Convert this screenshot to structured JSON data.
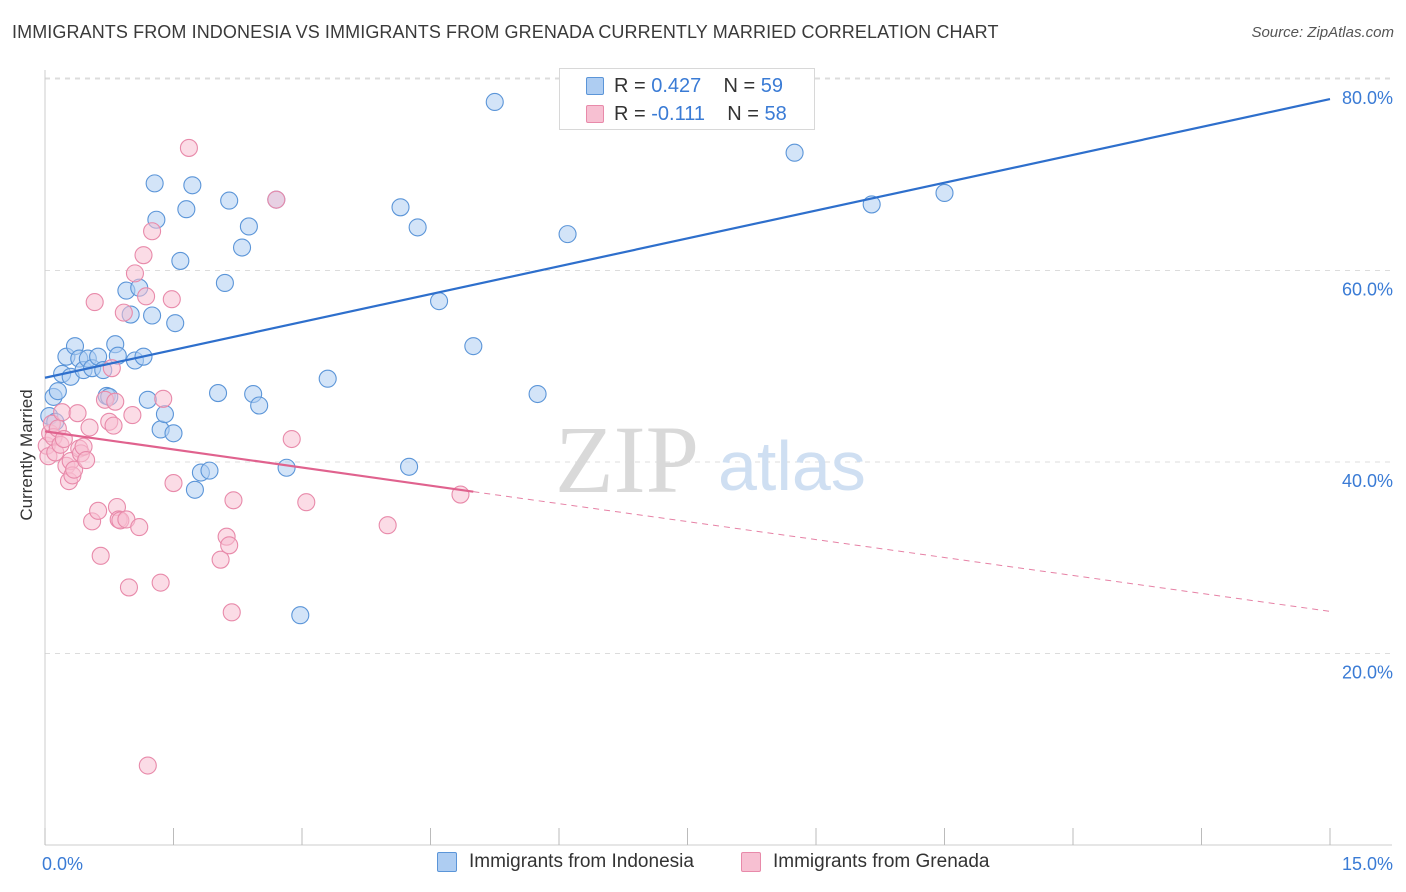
{
  "header": {
    "title": "IMMIGRANTS FROM INDONESIA VS IMMIGRANTS FROM GRENADA CURRENTLY MARRIED CORRELATION CHART",
    "source": "Source: ZipAtlas.com"
  },
  "watermark": {
    "zip": "ZIP",
    "atlas": "atlas"
  },
  "colors": {
    "series1_fill": "#aecdf2",
    "series1_stroke": "#5b95d8",
    "series1_line": "#2e6fcc",
    "series2_fill": "#f7c0d2",
    "series2_stroke": "#e88aaa",
    "series2_line": "#e0628e",
    "grid": "#dcdcdc",
    "tick_text": "#3a7bd5"
  },
  "legend": {
    "series1": {
      "r_label": "R = ",
      "r_value": "0.427",
      "n_label": "N = ",
      "n_value": "59"
    },
    "series2": {
      "r_label": "R = ",
      "r_value": "-0.111",
      "n_label": "N = ",
      "n_value": "58"
    }
  },
  "chart_data": {
    "type": "scatter",
    "title": "IMMIGRANTS FROM INDONESIA VS IMMIGRANTS FROM GRENADA CURRENTLY MARRIED CORRELATION CHART",
    "xlabel": "",
    "ylabel": "Currently Married",
    "xlim": [
      0,
      15
    ],
    "ylim": [
      0,
      85
    ],
    "x_tick_labels": {
      "left": "0.0%",
      "right": "15.0%"
    },
    "y_ticks": [
      {
        "value": 20,
        "label": "20.0%"
      },
      {
        "value": 40,
        "label": "40.0%"
      },
      {
        "value": 60,
        "label": "60.0%"
      },
      {
        "value": 80,
        "label": "80.0%"
      }
    ],
    "series": [
      {
        "name": "Immigrants from Indonesia",
        "r": 0.427,
        "n": 59,
        "trend": {
          "x0": 0.0,
          "y0": 48.8,
          "x1": 15.0,
          "y1": 77.9
        },
        "points": [
          [
            0.05,
            44.8
          ],
          [
            0.1,
            46.8
          ],
          [
            0.12,
            44.2
          ],
          [
            0.15,
            47.4
          ],
          [
            0.2,
            49.2
          ],
          [
            0.25,
            51.0
          ],
          [
            0.3,
            48.9
          ],
          [
            0.35,
            52.1
          ],
          [
            0.4,
            50.8
          ],
          [
            0.45,
            49.6
          ],
          [
            0.5,
            50.8
          ],
          [
            0.55,
            49.8
          ],
          [
            0.62,
            51.0
          ],
          [
            0.68,
            49.6
          ],
          [
            0.72,
            46.9
          ],
          [
            0.75,
            46.8
          ],
          [
            0.82,
            52.3
          ],
          [
            0.85,
            51.1
          ],
          [
            0.95,
            57.9
          ],
          [
            1.0,
            55.4
          ],
          [
            1.05,
            50.6
          ],
          [
            1.1,
            58.2
          ],
          [
            1.15,
            51.0
          ],
          [
            1.2,
            46.5
          ],
          [
            1.25,
            55.3
          ],
          [
            1.28,
            69.1
          ],
          [
            1.3,
            65.3
          ],
          [
            1.35,
            43.4
          ],
          [
            1.4,
            45.0
          ],
          [
            1.5,
            43.0
          ],
          [
            1.52,
            54.5
          ],
          [
            1.58,
            61.0
          ],
          [
            1.65,
            66.4
          ],
          [
            1.72,
            68.9
          ],
          [
            1.75,
            37.1
          ],
          [
            1.82,
            38.9
          ],
          [
            1.92,
            39.1
          ],
          [
            2.02,
            47.2
          ],
          [
            2.1,
            58.7
          ],
          [
            2.15,
            67.3
          ],
          [
            2.3,
            62.4
          ],
          [
            2.38,
            64.6
          ],
          [
            2.43,
            47.1
          ],
          [
            2.5,
            45.9
          ],
          [
            2.7,
            67.4
          ],
          [
            2.82,
            39.4
          ],
          [
            2.98,
            24.0
          ],
          [
            3.3,
            48.7
          ],
          [
            4.15,
            66.6
          ],
          [
            4.25,
            39.5
          ],
          [
            4.35,
            64.5
          ],
          [
            4.6,
            56.8
          ],
          [
            5.0,
            52.1
          ],
          [
            5.25,
            77.6
          ],
          [
            5.75,
            47.1
          ],
          [
            6.1,
            63.8
          ],
          [
            8.75,
            72.3
          ],
          [
            9.65,
            66.9
          ],
          [
            10.5,
            68.1
          ]
        ]
      },
      {
        "name": "Immigrants from Grenada",
        "r": -0.111,
        "n": 58,
        "trend": {
          "x0": 0.0,
          "y0": 43.2,
          "x1": 5.0,
          "y1": 36.9,
          "dashed_x1": 15.0,
          "dashed_y1": 24.4
        },
        "points": [
          [
            0.02,
            41.7
          ],
          [
            0.04,
            40.6
          ],
          [
            0.06,
            43.0
          ],
          [
            0.08,
            44.0
          ],
          [
            0.1,
            42.6
          ],
          [
            0.12,
            41.0
          ],
          [
            0.15,
            43.5
          ],
          [
            0.18,
            41.8
          ],
          [
            0.2,
            45.2
          ],
          [
            0.22,
            42.4
          ],
          [
            0.25,
            39.6
          ],
          [
            0.28,
            38.0
          ],
          [
            0.3,
            40.1
          ],
          [
            0.32,
            38.6
          ],
          [
            0.34,
            39.2
          ],
          [
            0.38,
            45.1
          ],
          [
            0.4,
            41.4
          ],
          [
            0.42,
            40.9
          ],
          [
            0.45,
            41.6
          ],
          [
            0.48,
            40.2
          ],
          [
            0.52,
            43.6
          ],
          [
            0.55,
            33.8
          ],
          [
            0.58,
            56.7
          ],
          [
            0.62,
            34.9
          ],
          [
            0.65,
            30.2
          ],
          [
            0.7,
            46.5
          ],
          [
            0.75,
            44.2
          ],
          [
            0.78,
            49.8
          ],
          [
            0.8,
            43.8
          ],
          [
            0.82,
            46.3
          ],
          [
            0.84,
            35.3
          ],
          [
            0.86,
            34.0
          ],
          [
            0.88,
            33.9
          ],
          [
            0.92,
            55.6
          ],
          [
            0.95,
            34.0
          ],
          [
            0.98,
            26.9
          ],
          [
            1.02,
            44.9
          ],
          [
            1.05,
            59.7
          ],
          [
            1.1,
            33.2
          ],
          [
            1.15,
            61.6
          ],
          [
            1.18,
            57.3
          ],
          [
            1.2,
            8.3
          ],
          [
            1.25,
            64.1
          ],
          [
            1.35,
            27.4
          ],
          [
            1.38,
            46.6
          ],
          [
            1.48,
            57.0
          ],
          [
            1.5,
            37.8
          ],
          [
            1.68,
            72.8
          ],
          [
            2.05,
            29.8
          ],
          [
            2.12,
            32.2
          ],
          [
            2.15,
            31.3
          ],
          [
            2.18,
            24.3
          ],
          [
            2.2,
            36.0
          ],
          [
            2.7,
            67.4
          ],
          [
            2.88,
            42.4
          ],
          [
            3.05,
            35.8
          ],
          [
            4.0,
            33.4
          ],
          [
            4.85,
            36.6
          ]
        ]
      }
    ]
  },
  "bottom_legend": {
    "series1_label": "Immigrants from Indonesia",
    "series2_label": "Immigrants from Grenada"
  }
}
